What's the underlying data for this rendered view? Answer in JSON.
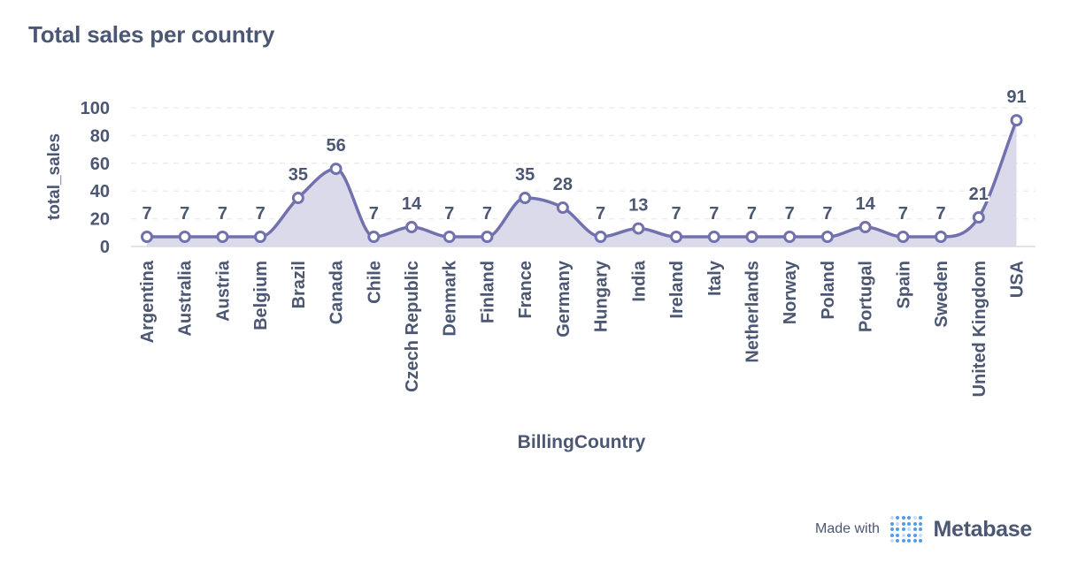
{
  "title": "Total sales per country",
  "footer": {
    "made_with": "Made with",
    "brand": "Metabase",
    "logo_icon": "metabase-logo-icon"
  },
  "colors": {
    "series": "#7172ad",
    "area": "#d8d8ea",
    "text": "#4c5773",
    "grid": "#ededed"
  },
  "chart_data": {
    "type": "line",
    "interpolation": "smooth",
    "area_fill": true,
    "xlabel": "BillingCountry",
    "ylabel": "total_sales",
    "ylim": [
      0,
      100
    ],
    "yticks": [
      0,
      20,
      40,
      60,
      80,
      100
    ],
    "grid": "horizontal dashed",
    "legend": "none",
    "categories": [
      "Argentina",
      "Australia",
      "Austria",
      "Belgium",
      "Brazil",
      "Canada",
      "Chile",
      "Czech Republic",
      "Denmark",
      "Finland",
      "France",
      "Germany",
      "Hungary",
      "India",
      "Ireland",
      "Italy",
      "Netherlands",
      "Norway",
      "Poland",
      "Portugal",
      "Spain",
      "Sweden",
      "United Kingdom",
      "USA"
    ],
    "values": [
      7,
      7,
      7,
      7,
      35,
      56,
      7,
      14,
      7,
      7,
      35,
      28,
      7,
      13,
      7,
      7,
      7,
      7,
      7,
      14,
      7,
      7,
      21,
      91
    ],
    "data_labels": true
  }
}
